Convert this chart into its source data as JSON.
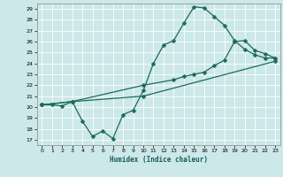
{
  "xlabel": "Humidex (Indice chaleur)",
  "bg_color": "#cce8e8",
  "grid_color": "#b8d8d8",
  "line_color": "#1a6b5a",
  "xlim": [
    -0.5,
    23.5
  ],
  "ylim": [
    16.5,
    29.5
  ],
  "yticks": [
    17,
    18,
    19,
    20,
    21,
    22,
    23,
    24,
    25,
    26,
    27,
    28,
    29
  ],
  "xticks": [
    0,
    1,
    2,
    3,
    4,
    5,
    6,
    7,
    8,
    9,
    10,
    11,
    12,
    13,
    14,
    15,
    16,
    17,
    18,
    19,
    20,
    21,
    22,
    23
  ],
  "line1_x": [
    0,
    1,
    2,
    3,
    4,
    5,
    6,
    7,
    8,
    9,
    10,
    11,
    12,
    13,
    14,
    15,
    16,
    17,
    18,
    19,
    20,
    21,
    22,
    23
  ],
  "line1_y": [
    20.2,
    20.2,
    20.1,
    20.5,
    18.7,
    17.3,
    17.8,
    17.1,
    19.3,
    19.7,
    21.5,
    24.0,
    25.7,
    26.1,
    27.7,
    29.2,
    29.1,
    28.3,
    27.5,
    26.1,
    25.3,
    24.8,
    24.5,
    24.5
  ],
  "line2_x": [
    0,
    3,
    10,
    13,
    14,
    15,
    16,
    17,
    18,
    19,
    20,
    21,
    22,
    23
  ],
  "line2_y": [
    20.2,
    20.5,
    22.0,
    22.5,
    22.8,
    23.0,
    23.2,
    23.8,
    24.3,
    26.0,
    26.1,
    25.2,
    24.9,
    24.5
  ],
  "line3_x": [
    0,
    3,
    10,
    23
  ],
  "line3_y": [
    20.2,
    20.5,
    21.0,
    24.2
  ]
}
